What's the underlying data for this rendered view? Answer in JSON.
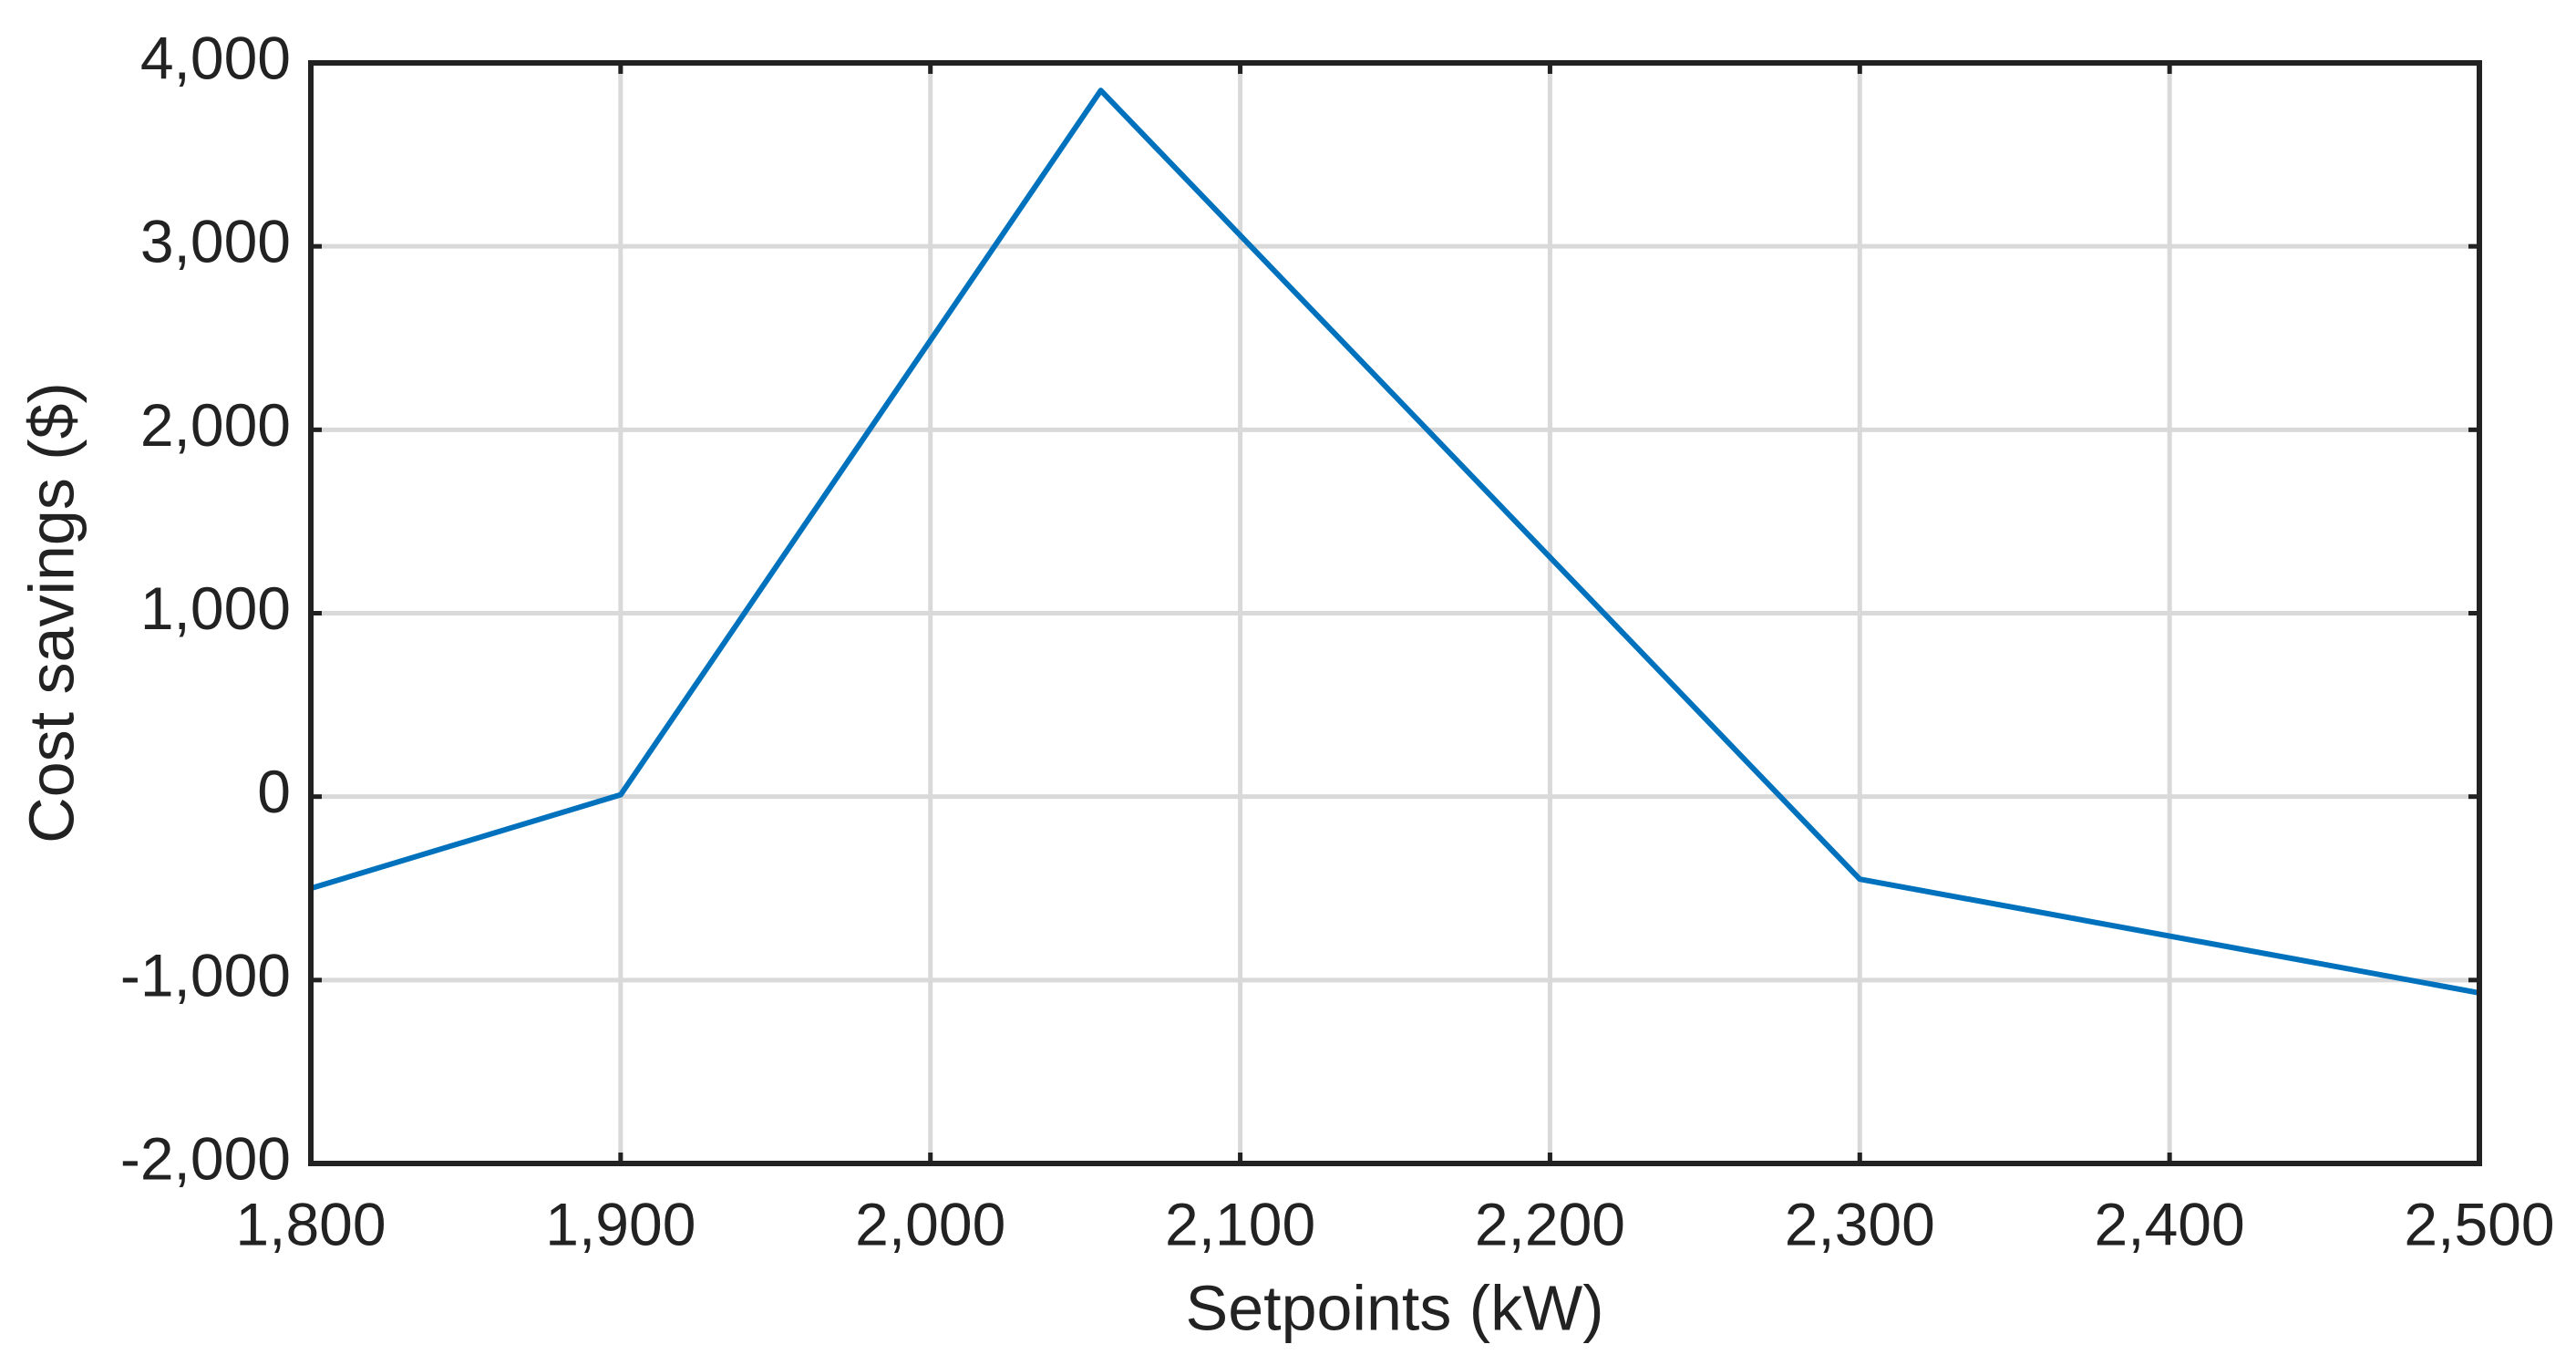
{
  "chart_data": {
    "type": "line",
    "x_label": "Setpoints (kW)",
    "y_label": "Cost savings ($)",
    "x": [
      1800,
      1900,
      2055,
      2300,
      2500
    ],
    "series": [
      {
        "name": "Cost savings",
        "color": "#0072bd",
        "values": [
          -500,
          10,
          3850,
          -450,
          -1070
        ]
      }
    ],
    "xlim": [
      1800,
      2500
    ],
    "ylim": [
      -2000,
      4000
    ],
    "xticks": [
      {
        "value": 1800,
        "label": "1,800"
      },
      {
        "value": 1900,
        "label": "1,900"
      },
      {
        "value": 2000,
        "label": "2,000"
      },
      {
        "value": 2100,
        "label": "2,100"
      },
      {
        "value": 2200,
        "label": "2,200"
      },
      {
        "value": 2300,
        "label": "2,300"
      },
      {
        "value": 2400,
        "label": "2,400"
      },
      {
        "value": 2500,
        "label": "2,500"
      }
    ],
    "yticks": [
      {
        "value": -2000,
        "label": "-2,000"
      },
      {
        "value": -1000,
        "label": "-1,000"
      },
      0,
      {
        "value": 1000,
        "label": "1,000"
      },
      {
        "value": 2000,
        "label": "2,000"
      },
      {
        "value": 3000,
        "label": "3,000"
      },
      {
        "value": 4000,
        "label": "4,000"
      }
    ],
    "grid": true
  }
}
